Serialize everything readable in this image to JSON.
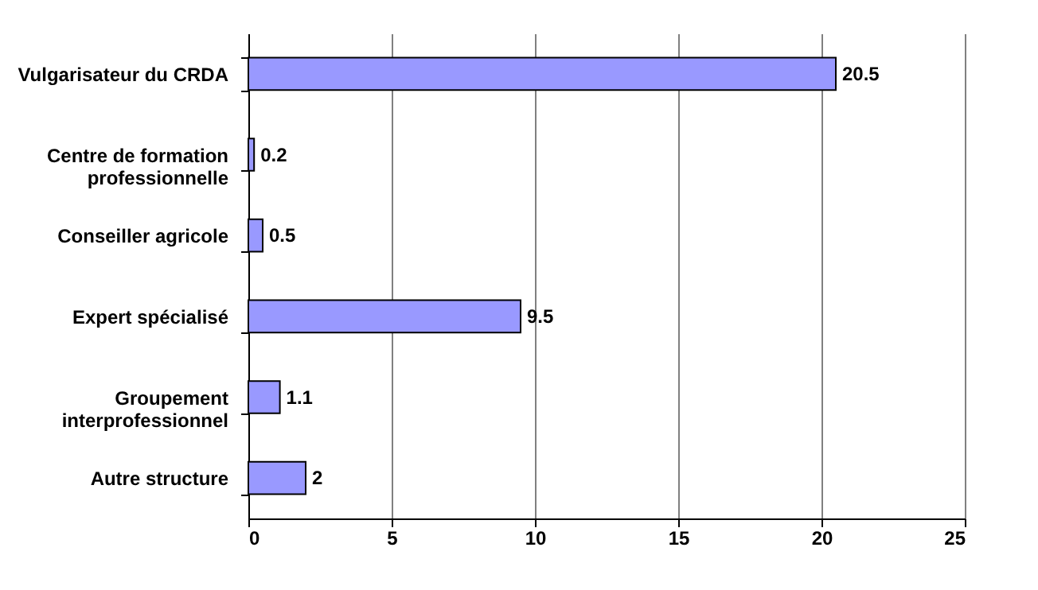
{
  "chart_data": {
    "type": "bar",
    "orientation": "horizontal",
    "categories": [
      "Vulgarisateur du CRDA",
      "Centre de formation\nprofessionnelle",
      "Conseiller agricole",
      "Expert spécialisé",
      "Groupement\ninterprofessionnel",
      "Autre structure"
    ],
    "values": [
      20.5,
      0.2,
      0.5,
      9.5,
      1.1,
      2
    ],
    "color": "#9999ff",
    "xlim": [
      0,
      25
    ],
    "xticks": [
      0,
      5,
      10,
      15,
      20,
      25
    ],
    "grid": "x",
    "data_labels": true
  }
}
